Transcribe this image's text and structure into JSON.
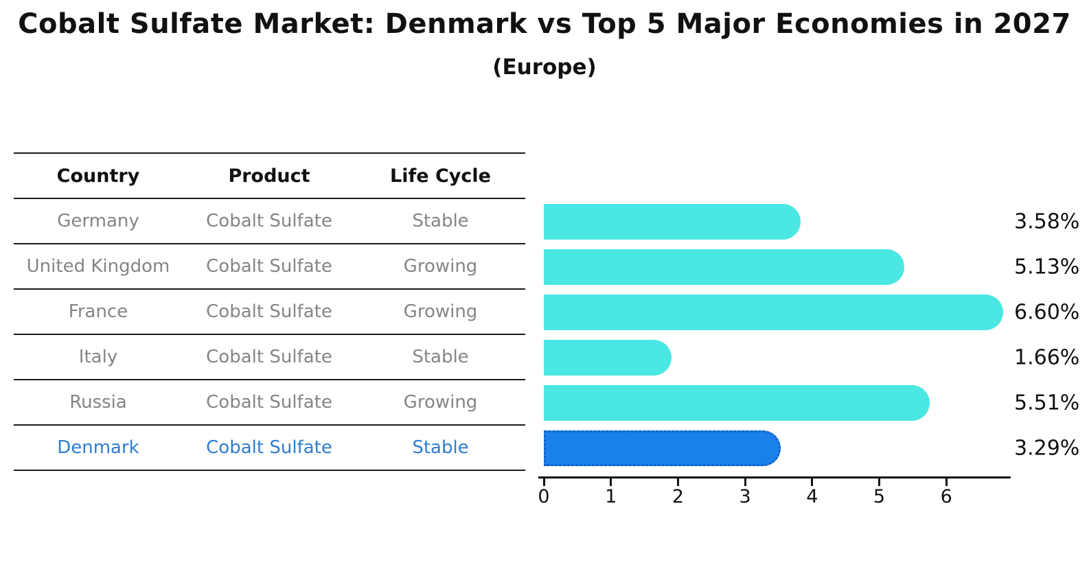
{
  "title": "Cobalt Sulfate Market: Denmark vs Top 5 Major Economies in 2027",
  "subtitle": "(Europe)",
  "table": {
    "headers": [
      "Country",
      "Product",
      "Life Cycle"
    ],
    "rows": [
      {
        "country": "Germany",
        "product": "Cobalt Sulfate",
        "life_cycle": "Stable",
        "highlight": false
      },
      {
        "country": "United Kingdom",
        "product": "Cobalt Sulfate",
        "life_cycle": "Growing",
        "highlight": false
      },
      {
        "country": "France",
        "product": "Cobalt Sulfate",
        "life_cycle": "Growing",
        "highlight": false
      },
      {
        "country": "Italy",
        "product": "Cobalt Sulfate",
        "life_cycle": "Stable",
        "highlight": false
      },
      {
        "country": "Russia",
        "product": "Cobalt Sulfate",
        "life_cycle": "Growing",
        "highlight": false
      },
      {
        "country": "Denmark",
        "product": "Cobalt Sulfate",
        "life_cycle": "Stable",
        "highlight": true
      }
    ]
  },
  "chart_data": {
    "type": "bar",
    "orientation": "horizontal",
    "title": "Cobalt Sulfate Market: Denmark vs Top 5 Major Economies in 2027",
    "subtitle": "(Europe)",
    "categories": [
      "Germany",
      "United Kingdom",
      "France",
      "Italy",
      "Russia",
      "Denmark"
    ],
    "values": [
      3.58,
      5.13,
      6.6,
      1.66,
      5.51,
      3.29
    ],
    "value_labels": [
      "3.58%",
      "5.13%",
      "6.60%",
      "1.66%",
      "5.51%",
      "3.29%"
    ],
    "xlabel": "",
    "ylabel": "",
    "xlim": [
      0,
      6.93
    ],
    "x_ticks": [
      "0",
      "1",
      "2",
      "3",
      "4",
      "5",
      "6"
    ],
    "grid": false,
    "legend": "none",
    "highlight_index": 5,
    "bar_color": "#4BE7E3",
    "highlight_bar_color": "#1A81EB",
    "highlight_border_color": "#1360C4"
  },
  "colors": {
    "background": "#FFFFFF",
    "text": "#111111",
    "muted_text": "#858585",
    "highlight_text": "#2F7CD0",
    "table_line": "#1A1A1A",
    "axis": "#111111"
  }
}
